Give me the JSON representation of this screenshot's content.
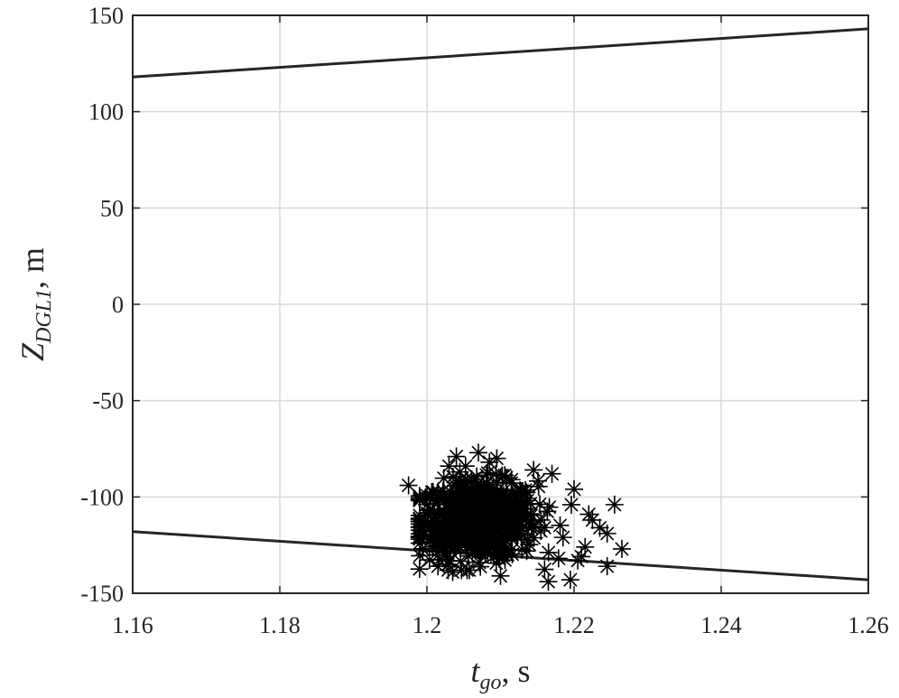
{
  "chart_data": {
    "type": "scatter",
    "title": "",
    "xlabel": {
      "main": "t",
      "sub": "go",
      "rest": ", s"
    },
    "ylabel": {
      "main": "Z",
      "sub": "DGL1",
      "rest": ", m"
    },
    "xlim": [
      1.16,
      1.26
    ],
    "ylim": [
      -150,
      150
    ],
    "xticks": [
      1.16,
      1.18,
      1.2,
      1.22,
      1.24,
      1.26
    ],
    "xtick_labels": [
      "1.16",
      "1.18",
      "1.2",
      "1.22",
      "1.24",
      "1.26"
    ],
    "yticks": [
      -150,
      -100,
      -50,
      0,
      50,
      100,
      150
    ],
    "ytick_labels": [
      "-150",
      "-100",
      "-50",
      "0",
      "50",
      "100",
      "150"
    ],
    "grid": true,
    "colors": {
      "line": "#262626",
      "marker": "#000000",
      "grid": "#d9d9d9",
      "axis": "#262626"
    },
    "series": [
      {
        "kind": "line",
        "x": [
          1.16,
          1.26
        ],
        "y": [
          118,
          143
        ]
      },
      {
        "kind": "line",
        "x": [
          1.16,
          1.26
        ],
        "y": [
          -118,
          -143
        ]
      },
      {
        "kind": "scatter",
        "marker": "asterisk",
        "cluster": {
          "x_mean": 1.207,
          "x_std": 0.004,
          "y_mean": -112,
          "y_std": 10,
          "n": 600
        },
        "x": [
          1.1975,
          1.199,
          1.2,
          1.2015,
          1.203,
          1.204,
          1.2055,
          1.207,
          1.2075,
          1.2085,
          1.21,
          1.2115,
          1.213,
          1.2145,
          1.2155,
          1.217,
          1.2185,
          1.2195,
          1.221,
          1.222,
          1.2235,
          1.2245,
          1.2255,
          1.2265,
          1.2245,
          1.22,
          1.2165,
          1.2095,
          1.2025,
          1.2035,
          1.2205,
          1.2215,
          1.2225
        ],
        "y": [
          -94,
          -124,
          -104,
          -136,
          -84,
          -79,
          -96,
          -77,
          -128,
          -82,
          -141,
          -91,
          -106,
          -86,
          -112,
          -88,
          -121,
          -143,
          -131,
          -109,
          -116,
          -119,
          -104,
          -127,
          -136,
          -96,
          -144,
          -80,
          -108,
          -139,
          -133,
          -126,
          -112
        ]
      }
    ]
  }
}
